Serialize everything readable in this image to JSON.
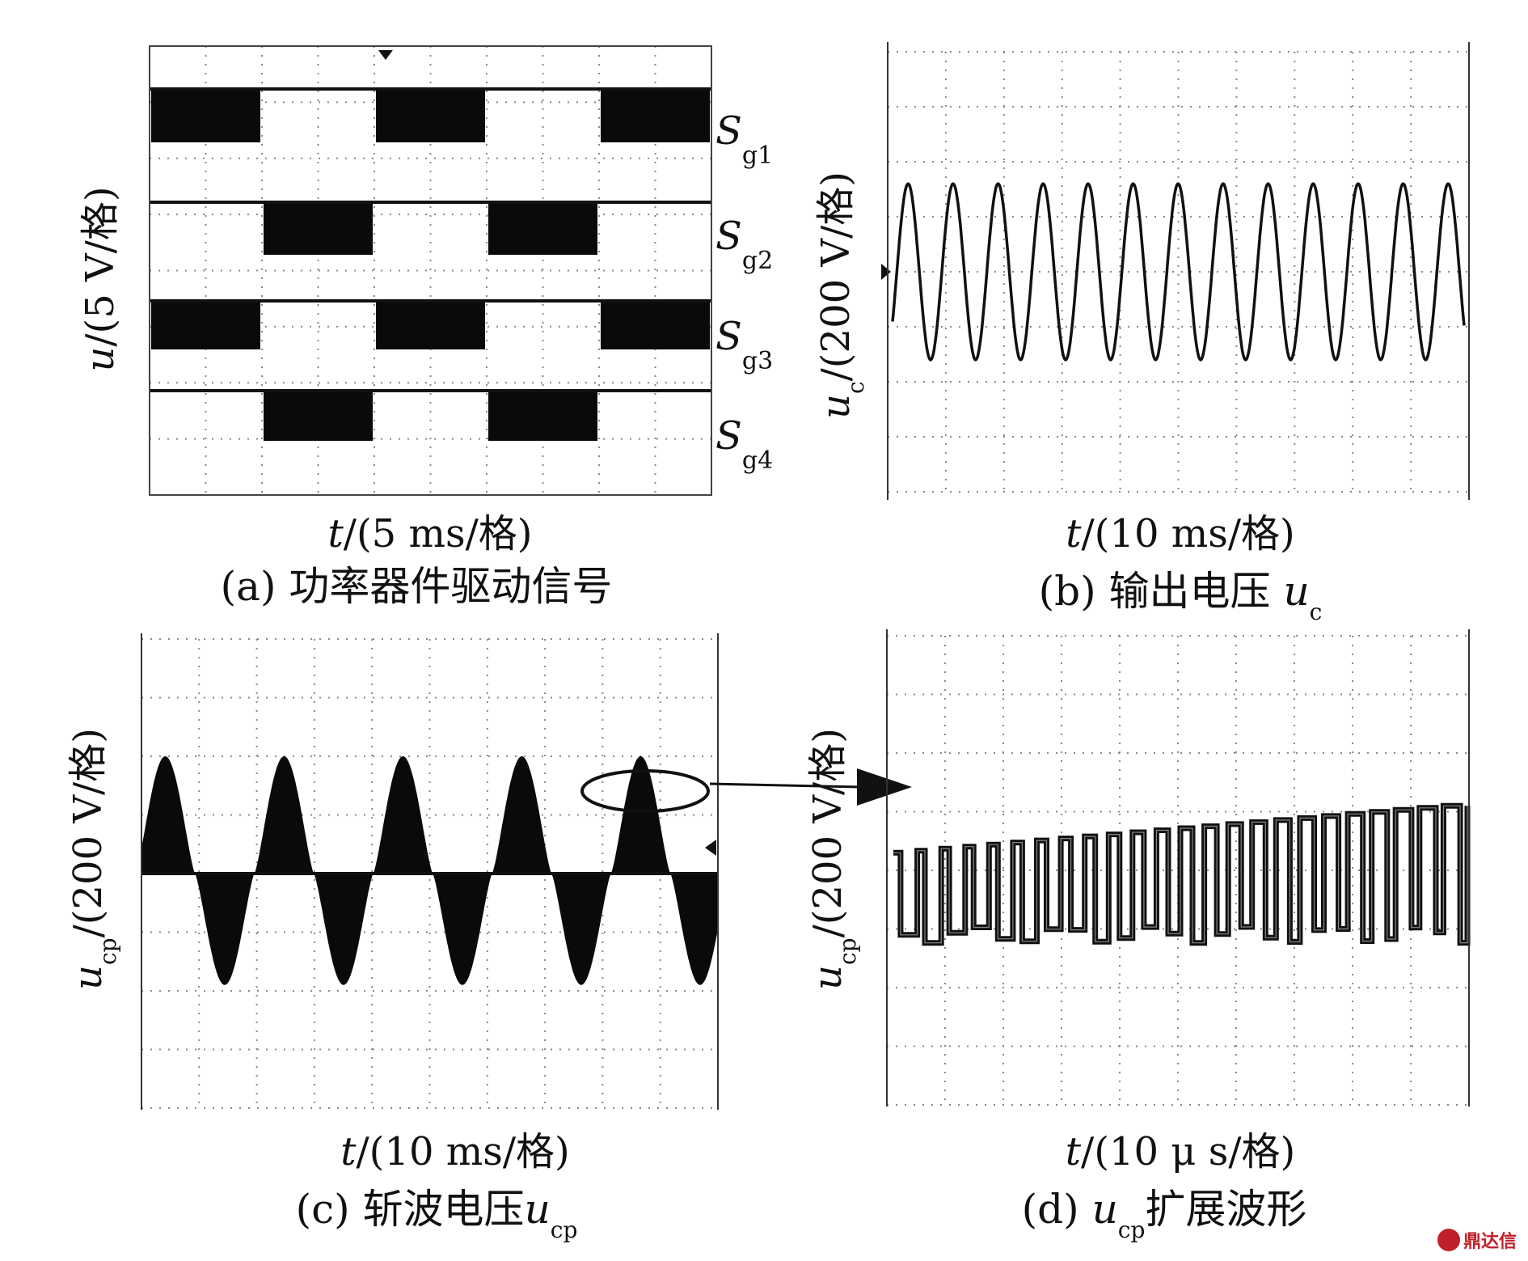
{
  "figure": {
    "panels": [
      {
        "id": "a",
        "caption_prefix": "(a)",
        "caption_text": "功率器件驱动信号",
        "ylabel_var": "u",
        "ylabel_unit": "/(5 V/格)",
        "xlabel_var": "t",
        "xlabel_unit": "/(5 ms/格)",
        "signals": [
          {
            "name": "S",
            "sub": "g1"
          },
          {
            "name": "S",
            "sub": "g2"
          },
          {
            "name": "S",
            "sub": "g3"
          },
          {
            "name": "S",
            "sub": "g4"
          }
        ]
      },
      {
        "id": "b",
        "caption_prefix": "(b)",
        "caption_text": "输出电压",
        "caption_var": "u",
        "caption_sub": "c",
        "ylabel_var": "u",
        "ylabel_sub": "c",
        "ylabel_unit": "/(200 V/格)",
        "xlabel_var": "t",
        "xlabel_unit": "/(10 ms/格)"
      },
      {
        "id": "c",
        "caption_prefix": "(c)",
        "caption_text": "斩波电压",
        "caption_var": "u",
        "caption_sub": "cp",
        "ylabel_var": "u",
        "ylabel_sub": "cp",
        "ylabel_unit": "/(200 V/格)",
        "xlabel_var": "t",
        "xlabel_unit": "/(10 ms/格)"
      },
      {
        "id": "d",
        "caption_prefix": "(d)",
        "caption_var": "u",
        "caption_sub": "cp",
        "caption_text": "扩展波形",
        "ylabel_var": "u",
        "ylabel_sub": "cp",
        "ylabel_unit": "/(200 V/格)",
        "xlabel_var": "t",
        "xlabel_unit": "/(10 μ s/格)"
      }
    ],
    "watermark": "鼎达信"
  },
  "chart_data": [
    {
      "type": "line",
      "panel": "a",
      "xlabel": "t/(5 ms/格)",
      "ylabel": "u/(5 V/格)",
      "x_divisions": 10,
      "y_divisions": 8,
      "grid": true,
      "series": [
        {
          "name": "Sg1",
          "high_intervals_div": [
            [
              0,
              2
            ],
            [
              4,
              6
            ],
            [
              8,
              10
            ]
          ]
        },
        {
          "name": "Sg2",
          "high_intervals_div": [
            [
              2,
              4
            ],
            [
              6,
              8
            ]
          ]
        },
        {
          "name": "Sg3",
          "high_intervals_div": [
            [
              0,
              2
            ],
            [
              4,
              6
            ],
            [
              8,
              10
            ]
          ]
        },
        {
          "name": "Sg4",
          "high_intervals_div": [
            [
              2,
              4
            ],
            [
              6,
              8
            ]
          ]
        }
      ]
    },
    {
      "type": "line",
      "panel": "b",
      "xlabel": "t/(10 ms/格)",
      "ylabel": "uc/(200 V/格)",
      "x_divisions": 10,
      "y_divisions": 8,
      "grid": true,
      "waveform": "sine",
      "cycles": 12.7,
      "amplitude_div": 1.6
    },
    {
      "type": "line",
      "panel": "c",
      "xlabel": "t/(10 ms/格)",
      "ylabel": "ucp/(200 V/格)",
      "x_divisions": 10,
      "y_divisions": 8,
      "grid": true,
      "waveform": "chopped-sine",
      "positive_peaks": 5,
      "amplitude_div": 2,
      "negative_amplitude_div": 1.9
    },
    {
      "type": "line",
      "panel": "d",
      "xlabel": "t/(10 μ s/格)",
      "ylabel": "ucp/(200 V/格)",
      "x_divisions": 10,
      "y_divisions": 8,
      "grid": true,
      "waveform": "pwm-square",
      "pulses": 24,
      "high_level_start_div": 0.3,
      "high_level_end_div": 1.1,
      "low_level_div": -1.1
    }
  ]
}
